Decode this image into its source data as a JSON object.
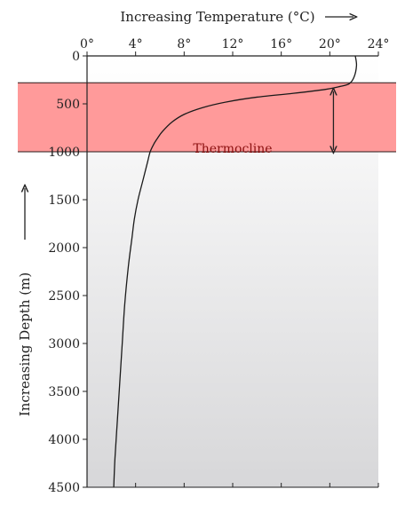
{
  "chart_data": {
    "type": "line",
    "title": "",
    "xlabel": "Increasing Temperature (°C)",
    "ylabel": "Increasing Depth (m)",
    "xlim": [
      0,
      24
    ],
    "ylim": [
      0,
      4500
    ],
    "y_inverted": true,
    "x_axis_position": "top",
    "x_ticks": [
      0,
      4,
      8,
      12,
      16,
      20,
      24
    ],
    "x_tick_labels": [
      "0°",
      "4°",
      "8°",
      "12°",
      "16°",
      "20°",
      "24°"
    ],
    "y_ticks": [
      0,
      500,
      1000,
      1500,
      2000,
      2500,
      3000,
      3500,
      4000,
      4500
    ],
    "y_tick_labels": [
      "0",
      "500",
      "1000",
      "1500",
      "2000",
      "2500",
      "3000",
      "3500",
      "4000",
      "4500"
    ],
    "grid": false,
    "series": [
      {
        "x": [
          22.1,
          22.2,
          22.0,
          21.6,
          20.8,
          19.6,
          17.0,
          14.0,
          11.5,
          9.5,
          8.0,
          7.0,
          6.2,
          5.8,
          5.5,
          5.2,
          5.0,
          4.6,
          4.2,
          3.9,
          3.7,
          3.4,
          3.1,
          2.9,
          2.7,
          2.5,
          2.3,
          2.2
        ],
        "y": [
          0,
          100,
          220,
          290,
          320,
          350,
          390,
          430,
          480,
          540,
          610,
          690,
          790,
          860,
          920,
          1000,
          1100,
          1300,
          1500,
          1700,
          1900,
          2200,
          2600,
          3000,
          3400,
          3800,
          4200,
          4500
        ]
      }
    ],
    "annotations": [
      {
        "type": "band",
        "label": "Thermocline",
        "y_range": [
          280,
          1000
        ],
        "color": "#ff9a9a"
      },
      {
        "type": "double-arrow",
        "x": 20.3,
        "y_range": [
          370,
          980
        ]
      }
    ],
    "colors": {
      "band": "#ff9a9a",
      "band_edge": "#2a1a1a",
      "band_text": "#8b1010",
      "line": "#1a1a1a",
      "plot_bg_top": "#ffffff",
      "plot_bg_bottom": "#d7d7d9"
    }
  }
}
